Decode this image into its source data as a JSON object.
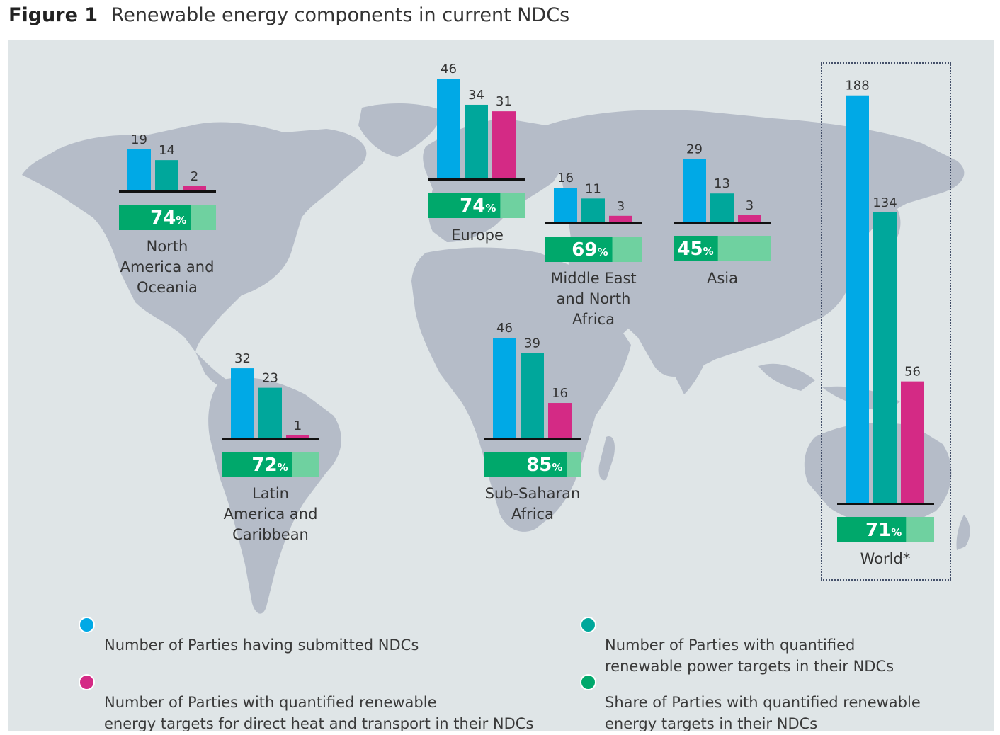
{
  "header": {
    "figure_label": "Figure 1",
    "title": "Renewable energy components in current NDCs"
  },
  "colors": {
    "submitted": "#00a9e6",
    "renewable_power": "#00a79b",
    "heat_transport": "#d42a85",
    "share_dark": "#00a86b",
    "share_light": "#6fd1a0",
    "map": "#b5bcc8",
    "background": "#dfe5e7"
  },
  "chart_data": {
    "type": "bar",
    "title": "Renewable energy components in current NDCs",
    "series": [
      {
        "name": "Number of Parties having submitted NDCs",
        "key": "submitted"
      },
      {
        "name": "Number of Parties with quantified renewable power targets in their NDCs",
        "key": "renewable_power"
      },
      {
        "name": "Number of Parties with quantified renewable energy targets for direct heat and transport in their NDCs",
        "key": "heat_transport"
      },
      {
        "name": "Share of Parties with quantified renewable energy targets in their NDCs",
        "key": "share"
      }
    ],
    "regions": [
      {
        "name": "North\nAmerica and\nOceania",
        "submitted": 19,
        "renewable_power": 14,
        "heat_transport": 2,
        "share": 74
      },
      {
        "name": "Europe",
        "submitted": 46,
        "renewable_power": 34,
        "heat_transport": 31,
        "share": 74
      },
      {
        "name": "Middle East\nand North\nAfrica",
        "submitted": 16,
        "renewable_power": 11,
        "heat_transport": 3,
        "share": 69
      },
      {
        "name": "Asia",
        "submitted": 29,
        "renewable_power": 13,
        "heat_transport": 3,
        "share": 45
      },
      {
        "name": "Latin\nAmerica and\nCaribbean",
        "submitted": 32,
        "renewable_power": 23,
        "heat_transport": 1,
        "share": 72
      },
      {
        "name": "Sub-Saharan\nAfrica",
        "submitted": 46,
        "renewable_power": 39,
        "heat_transport": 16,
        "share": 85
      },
      {
        "name": "World*",
        "submitted": 188,
        "renewable_power": 134,
        "heat_transport": 56,
        "share": 71
      }
    ],
    "share_unit": "%"
  },
  "legend": [
    {
      "text": "Number of Parties having submitted NDCs",
      "color_key": "submitted"
    },
    {
      "text": "Number of Parties with quantified\nrenewable power targets in their NDCs",
      "color_key": "renewable_power"
    },
    {
      "text": "Number of Parties with quantified renewable\nenergy targets for direct heat and transport in their NDCs",
      "color_key": "heat_transport"
    },
    {
      "text": "Share of Parties with quantified renewable\nenergy targets in their NDCs",
      "color_key": "share_dark"
    }
  ]
}
